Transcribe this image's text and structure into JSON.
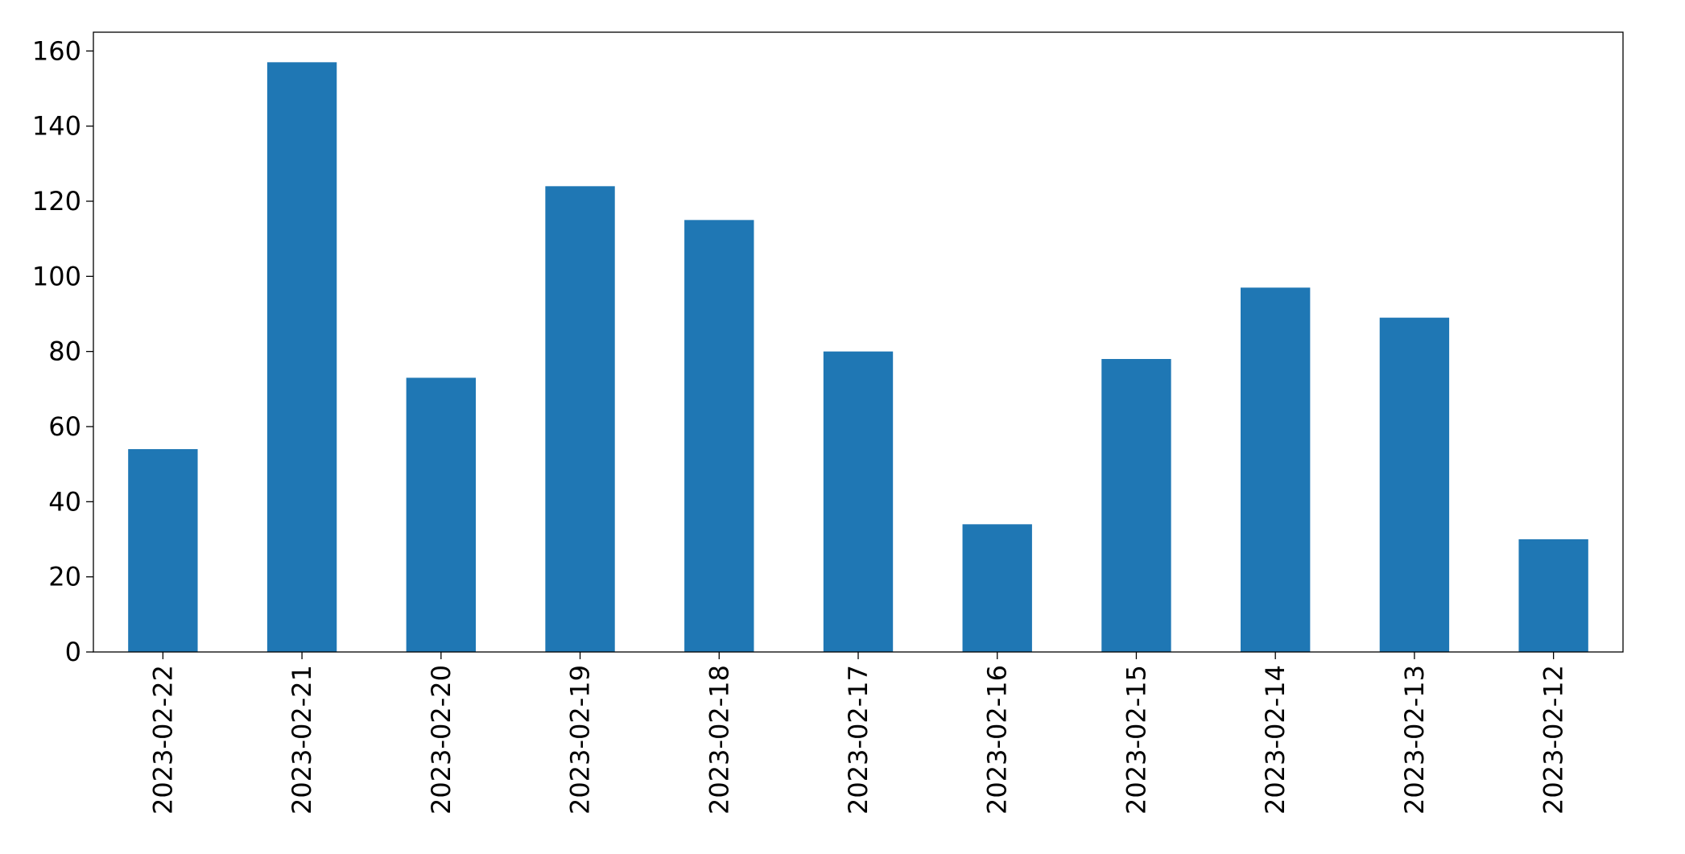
{
  "chart_data": {
    "type": "bar",
    "categories": [
      "2023-02-22",
      "2023-02-21",
      "2023-02-20",
      "2023-02-19",
      "2023-02-18",
      "2023-02-17",
      "2023-02-16",
      "2023-02-15",
      "2023-02-14",
      "2023-02-13",
      "2023-02-12"
    ],
    "values": [
      54,
      157,
      73,
      124,
      115,
      80,
      34,
      78,
      97,
      89,
      30
    ],
    "color": "#1f77b4",
    "ylim": [
      0,
      165
    ],
    "yticks": [
      0,
      20,
      40,
      60,
      80,
      100,
      120,
      140,
      160
    ],
    "grid": false
  }
}
